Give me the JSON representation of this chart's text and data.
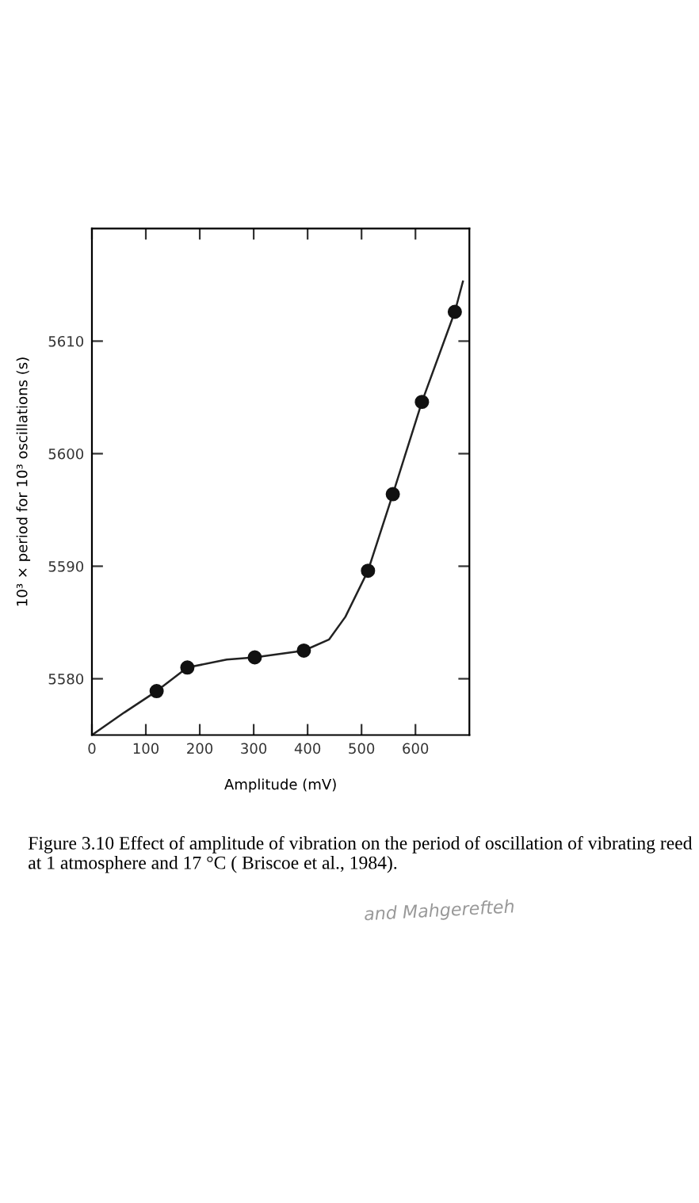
{
  "chart_data": {
    "type": "scatter",
    "xlabel": "Amplitude (mV)",
    "ylabel": "10³ × period for 10³ oscillations (s)",
    "xlim": [
      0,
      700
    ],
    "ylim": [
      5575,
      5620
    ],
    "xticks": [
      0,
      100,
      200,
      300,
      400,
      500,
      600
    ],
    "yticks": [
      5580,
      5590,
      5600,
      5610
    ],
    "grid": false,
    "legend": false,
    "marker": "circle",
    "series": [
      {
        "color": "#111111",
        "x": [
          120,
          177,
          302,
          393,
          512,
          558,
          612,
          673
        ],
        "values": [
          5578.9,
          5581.0,
          5581.9,
          5582.5,
          5589.6,
          5596.4,
          5604.6,
          5612.6
        ]
      },
      {
        "type": "line",
        "color": "#222222",
        "line_style": "solid",
        "marker": "none",
        "x": [
          0,
          60,
          120,
          177,
          250,
          302,
          393,
          440,
          470,
          512,
          558,
          612,
          673,
          688
        ],
        "values": [
          5575,
          5577,
          5578.9,
          5581.0,
          5581.7,
          5581.9,
          5582.5,
          5583.5,
          5585.5,
          5589.6,
          5596.4,
          5604.6,
          5612.6,
          5615.3
        ]
      }
    ],
    "annotations": [
      "Figure 3.10 Effect of amplitude of vibration on the period of oscillation of vibrating reed at 1 atmosphere and 17 °C ( Briscoe et al., 1984).",
      "and Mahgerefteh"
    ]
  }
}
